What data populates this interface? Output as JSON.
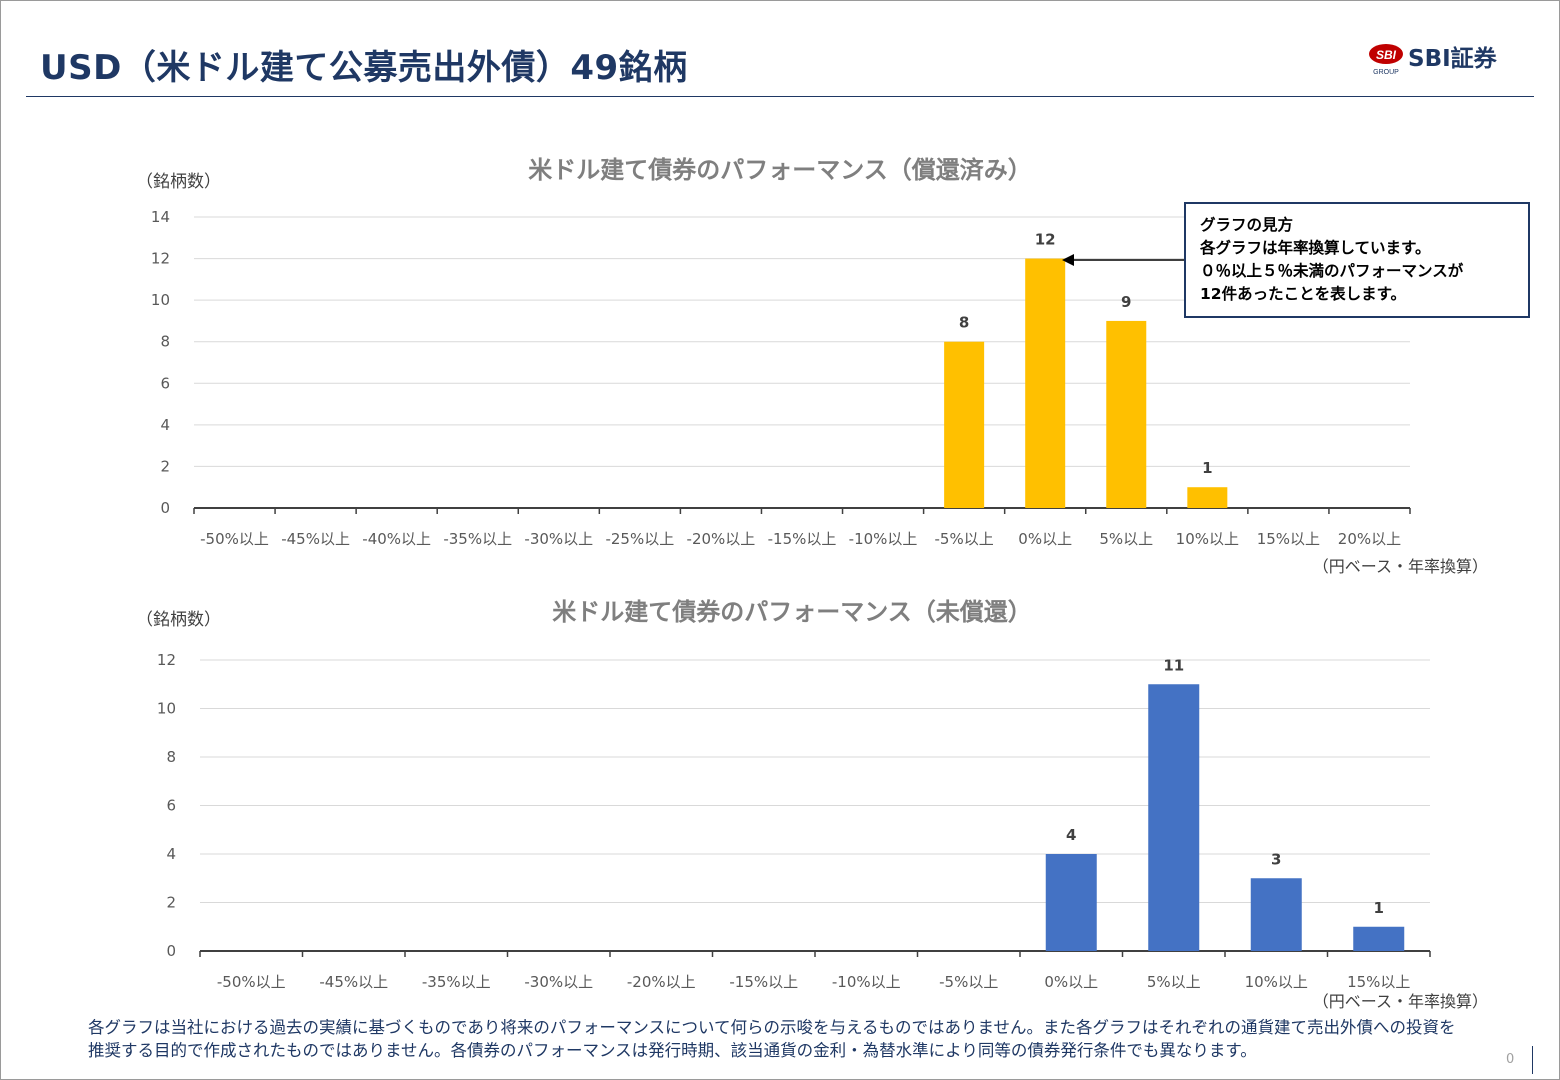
{
  "page": {
    "title": "USD（米ドル建て公募売出外債）49銘柄",
    "logo_mark": "SBI",
    "logo_sub": "GROUP",
    "logo_text": "SBI証券",
    "page_number": "0",
    "accent_color": "#1f3864"
  },
  "callout": {
    "lines": [
      "グラフの見方",
      "各グラフは年率換算しています。",
      "０％以上５％未満のパフォーマンスが",
      "12件あったことを表します。"
    ]
  },
  "disclaimer": {
    "lines": [
      "各グラフは当社における過去の実績に基づくものであり将来のパフォーマンスについて何らの示唆を与えるものではありません。また各グラフはそれぞれの通貨建て売出外債への投資を",
      "推奨する目的で作成されたものではありません。各債券のパフォーマンスは発行時期、該当通貨の金利・為替水準により同等の債券発行条件でも異なります。"
    ]
  },
  "chart_data": [
    {
      "type": "bar",
      "title": "米ドル建て債券のパフォーマンス（償還済み）",
      "ylabel": "（銘柄数）",
      "xlabel": "（円ベース・年率換算）",
      "categories": [
        "-50%以上",
        "-45%以上",
        "-40%以上",
        "-35%以上",
        "-30%以上",
        "-25%以上",
        "-20%以上",
        "-15%以上",
        "-10%以上",
        "-5%以上",
        "0%以上",
        "5%以上",
        "10%以上",
        "15%以上",
        "20%以上"
      ],
      "values": [
        0,
        0,
        0,
        0,
        0,
        0,
        0,
        0,
        0,
        8,
        12,
        9,
        1,
        0,
        0
      ],
      "data_labels": [
        "",
        "",
        "",
        "",
        "",
        "",
        "",
        "",
        "",
        "8",
        "12",
        "9",
        "1",
        "",
        ""
      ],
      "ylim": [
        0,
        14
      ],
      "yticks": [
        "0",
        "2",
        "4",
        "6",
        "8",
        "10",
        "12",
        "14"
      ],
      "color": "#ffc000",
      "grid": true,
      "legend": "none"
    },
    {
      "type": "bar",
      "title": "米ドル建て債券のパフォーマンス（未償還）",
      "ylabel": "（銘柄数）",
      "xlabel": "（円ベース・年率換算）",
      "categories": [
        "-50%以上",
        "-45%以上",
        "-35%以上",
        "-30%以上",
        "-20%以上",
        "-15%以上",
        "-10%以上",
        "-5%以上",
        "0%以上",
        "5%以上",
        "10%以上",
        "15%以上"
      ],
      "values": [
        0,
        0,
        0,
        0,
        0,
        0,
        0,
        0,
        4,
        11,
        3,
        1
      ],
      "data_labels": [
        "",
        "",
        "",
        "",
        "",
        "",
        "",
        "",
        "4",
        "11",
        "3",
        "1"
      ],
      "ylim": [
        0,
        12
      ],
      "yticks": [
        "0",
        "2",
        "4",
        "6",
        "8",
        "10",
        "12"
      ],
      "color": "#4472c4",
      "grid": true,
      "legend": "none"
    }
  ]
}
